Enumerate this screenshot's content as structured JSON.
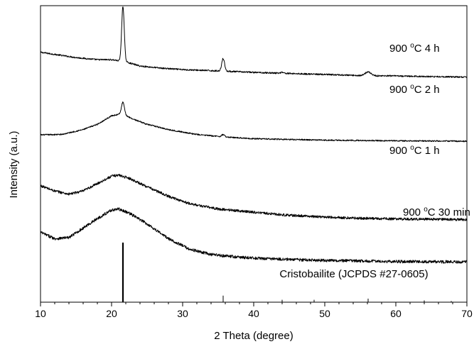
{
  "chart_data": {
    "type": "line",
    "xlabel": "2 Theta (degree)",
    "ylabel": "Intensity (a.u.)",
    "xlim": [
      10,
      70
    ],
    "x_ticks": [
      10,
      20,
      30,
      40,
      50,
      60,
      70
    ],
    "grid": false,
    "legend": "none",
    "reference": {
      "label": "Cristobailite (JCPDS #27-0605)",
      "peaks": [
        {
          "x": 21.6,
          "value": 100
        },
        {
          "x": 35.7,
          "value": 11
        },
        {
          "x": 44.0,
          "value": 4
        },
        {
          "x": 48.5,
          "value": 4
        },
        {
          "x": 56.1,
          "value": 6
        },
        {
          "x": 64.0,
          "value": 3
        },
        {
          "x": 67.8,
          "value": 2
        }
      ]
    },
    "series": [
      {
        "label_prefix": "900 ",
        "label_sup": "o",
        "label_suffix": "C 4 h",
        "baseline": 10.6,
        "background": [
          [
            10,
            1.2
          ],
          [
            15,
            0.95
          ],
          [
            18,
            0.85
          ],
          [
            20,
            0.85
          ],
          [
            22,
            0.75
          ],
          [
            24,
            0.55
          ],
          [
            27,
            0.45
          ],
          [
            30,
            0.38
          ],
          [
            35,
            0.32
          ],
          [
            40,
            0.25
          ],
          [
            45,
            0.2
          ],
          [
            50,
            0.15
          ],
          [
            55,
            0.1
          ],
          [
            60,
            0.08
          ],
          [
            65,
            0.05
          ],
          [
            70,
            0.03
          ]
        ],
        "peaks": [
          {
            "x": 21.6,
            "h": 2.6,
            "w": 0.18
          },
          {
            "x": 35.7,
            "h": 0.6,
            "w": 0.2
          },
          {
            "x": 44.0,
            "h": 0.05,
            "w": 0.2
          },
          {
            "x": 56.1,
            "h": 0.18,
            "w": 0.4
          }
        ],
        "noise": 0.035
      },
      {
        "label_prefix": "900 ",
        "label_sup": "o",
        "label_suffix": "C 2 h",
        "baseline": 7.6,
        "background": [
          [
            10,
            0.3
          ],
          [
            13,
            0.32
          ],
          [
            16,
            0.55
          ],
          [
            18,
            0.8
          ],
          [
            20,
            1.2
          ],
          [
            21.5,
            1.3
          ],
          [
            23,
            1.05
          ],
          [
            25,
            0.8
          ],
          [
            28,
            0.55
          ],
          [
            32,
            0.32
          ],
          [
            36,
            0.2
          ],
          [
            40,
            0.12
          ],
          [
            50,
            0.05
          ],
          [
            60,
            0.02
          ],
          [
            70,
            0.0
          ]
        ],
        "peaks": [
          {
            "x": 21.6,
            "h": 0.55,
            "w": 0.2
          },
          {
            "x": 35.7,
            "h": 0.1,
            "w": 0.2
          }
        ],
        "noise": 0.03
      },
      {
        "label_prefix": "900 ",
        "label_sup": "o",
        "label_suffix": "C 1 h",
        "baseline": 3.9,
        "background": [
          [
            10,
            1.6
          ],
          [
            12,
            1.35
          ],
          [
            14,
            1.2
          ],
          [
            16,
            1.35
          ],
          [
            18,
            1.7
          ],
          [
            20,
            2.05
          ],
          [
            21,
            2.1
          ],
          [
            22.5,
            1.95
          ],
          [
            25,
            1.55
          ],
          [
            28,
            1.1
          ],
          [
            31,
            0.75
          ],
          [
            35,
            0.5
          ],
          [
            40,
            0.35
          ],
          [
            45,
            0.2
          ],
          [
            50,
            0.12
          ],
          [
            55,
            0.06
          ],
          [
            60,
            0.03
          ],
          [
            70,
            0.0
          ]
        ],
        "peaks": [],
        "noise": 0.06
      },
      {
        "label_prefix": "900 ",
        "label_sup": "o",
        "label_suffix": "C 30 min",
        "baseline": 1.9,
        "background": [
          [
            10,
            1.4
          ],
          [
            12,
            1.1
          ],
          [
            14,
            1.15
          ],
          [
            16,
            1.6
          ],
          [
            18,
            2.05
          ],
          [
            20,
            2.45
          ],
          [
            21,
            2.5
          ],
          [
            22.5,
            2.3
          ],
          [
            25,
            1.8
          ],
          [
            28,
            1.1
          ],
          [
            31,
            0.6
          ],
          [
            34,
            0.35
          ],
          [
            38,
            0.22
          ],
          [
            42,
            0.15
          ],
          [
            50,
            0.07
          ],
          [
            60,
            0.02
          ],
          [
            70,
            0.0
          ]
        ],
        "peaks": [],
        "noise": 0.07
      }
    ]
  }
}
